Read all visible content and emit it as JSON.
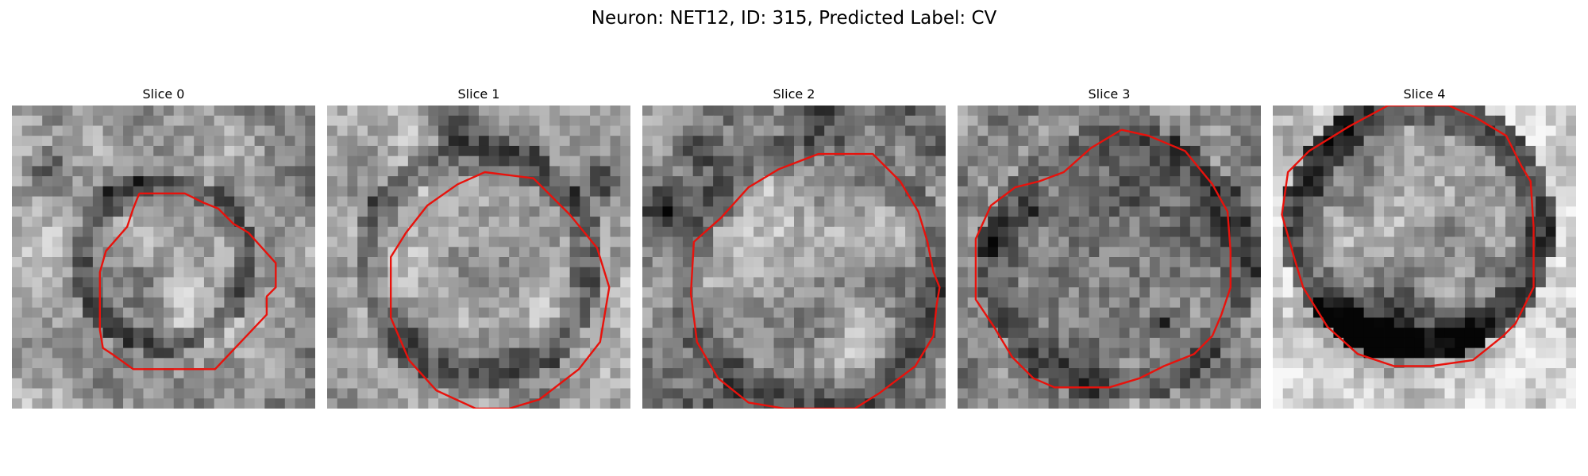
{
  "figure": {
    "title": "Neuron: NET12, ID: 315, Predicted Label: CV"
  },
  "panels": [
    {
      "title": "Slice 0",
      "icon": "grayscale-tile-image"
    },
    {
      "title": "Slice 1",
      "icon": "grayscale-tile-image"
    },
    {
      "title": "Slice 2",
      "icon": "grayscale-tile-image"
    },
    {
      "title": "Slice 3",
      "icon": "grayscale-tile-image"
    },
    {
      "title": "Slice 4",
      "icon": "grayscale-tile-image"
    }
  ],
  "colors": {
    "contour": "#e8120c",
    "background": "#ffffff"
  }
}
